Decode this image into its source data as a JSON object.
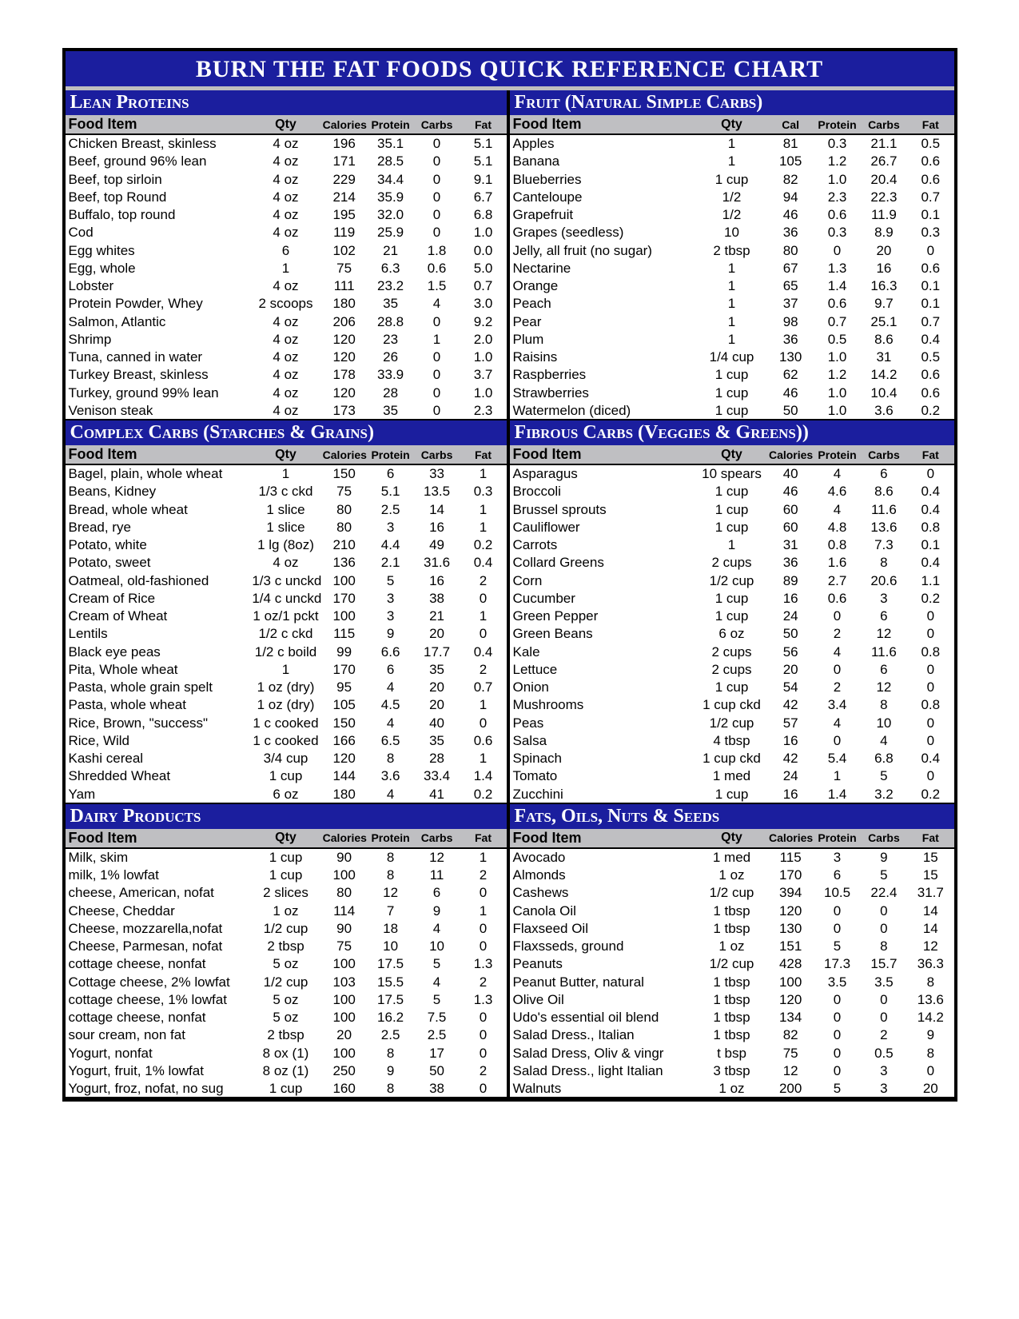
{
  "title": "BURN THE FAT FOODS QUICK REFERENCE CHART",
  "colors": {
    "header_bg": "#1b1e9e",
    "header_fg": "#ffffff",
    "thead_bg": "#bfbfc2",
    "border": "#000000",
    "title_underline": "#bfbfbf"
  },
  "column_labels": {
    "food": "Food Item",
    "qty": "Qty",
    "cal": "Calories",
    "cal_short": "Cal",
    "prot": "Protein",
    "carb": "Carbs",
    "fat": "Fat"
  },
  "sections": [
    {
      "title": "Lean Proteins",
      "cal_label": "Calories",
      "rows": [
        [
          "Chicken Breast, skinless",
          "4 oz",
          "196",
          "35.1",
          "0",
          "5.1"
        ],
        [
          "Beef, ground 96% lean",
          "4 oz",
          "171",
          "28.5",
          "0",
          "5.1"
        ],
        [
          "Beef, top sirloin",
          "4 oz",
          "229",
          "34.4",
          "0",
          "9.1"
        ],
        [
          "Beef, top Round",
          "4 oz",
          "214",
          "35.9",
          "0",
          "6.7"
        ],
        [
          "Buffalo, top round",
          "4 oz",
          "195",
          "32.0",
          "0",
          "6.8"
        ],
        [
          "Cod",
          "4 oz",
          "119",
          "25.9",
          "0",
          "1.0"
        ],
        [
          "Egg whites",
          "6",
          "102",
          "21",
          "1.8",
          "0.0"
        ],
        [
          "Egg, whole",
          "1",
          "75",
          "6.3",
          "0.6",
          "5.0"
        ],
        [
          "Lobster",
          "4 oz",
          "111",
          "23.2",
          "1.5",
          "0.7"
        ],
        [
          "Protein Powder, Whey",
          "2 scoops",
          "180",
          "35",
          "4",
          "3.0"
        ],
        [
          "Salmon, Atlantic",
          "4 oz",
          "206",
          "28.8",
          "0",
          "9.2"
        ],
        [
          "Shrimp",
          "4 oz",
          "120",
          "23",
          "1",
          "2.0"
        ],
        [
          "Tuna, canned in water",
          "4 oz",
          "120",
          "26",
          "0",
          "1.0"
        ],
        [
          "Turkey Breast, skinless",
          "4 oz",
          "178",
          "33.9",
          "0",
          "3.7"
        ],
        [
          "Turkey, ground 99% lean",
          "4 oz",
          "120",
          "28",
          "0",
          "1.0"
        ],
        [
          "Venison steak",
          "4 oz",
          "173",
          "35",
          "0",
          "2.3"
        ]
      ]
    },
    {
      "title": "Fruit (Natural Simple Carbs)",
      "cal_label": "Cal",
      "rows": [
        [
          "Apples",
          "1",
          "81",
          "0.3",
          "21.1",
          "0.5"
        ],
        [
          "Banana",
          "1",
          "105",
          "1.2",
          "26.7",
          "0.6"
        ],
        [
          "Blueberries",
          "1 cup",
          "82",
          "1.0",
          "20.4",
          "0.6"
        ],
        [
          "Canteloupe",
          "1/2",
          "94",
          "2.3",
          "22.3",
          "0.7"
        ],
        [
          "Grapefruit",
          "1/2",
          "46",
          "0.6",
          "11.9",
          "0.1"
        ],
        [
          "Grapes (seedless)",
          "10",
          "36",
          "0.3",
          "8.9",
          "0.3"
        ],
        [
          "Jelly, all fruit (no sugar)",
          "2 tbsp",
          "80",
          "0",
          "20",
          "0"
        ],
        [
          "Nectarine",
          "1",
          "67",
          "1.3",
          "16",
          "0.6"
        ],
        [
          "Orange",
          "1",
          "65",
          "1.4",
          "16.3",
          "0.1"
        ],
        [
          "Peach",
          "1",
          "37",
          "0.6",
          "9.7",
          "0.1"
        ],
        [
          "Pear",
          "1",
          "98",
          "0.7",
          "25.1",
          "0.7"
        ],
        [
          "Plum",
          "1",
          "36",
          "0.5",
          "8.6",
          "0.4"
        ],
        [
          "Raisins",
          "1/4 cup",
          "130",
          "1.0",
          "31",
          "0.5"
        ],
        [
          "Raspberries",
          "1 cup",
          "62",
          "1.2",
          "14.2",
          "0.6"
        ],
        [
          "Strawberries",
          "1 cup",
          "46",
          "1.0",
          "10.4",
          "0.6"
        ],
        [
          "Watermelon (diced)",
          "1 cup",
          "50",
          "1.0",
          "3.6",
          "0.2"
        ]
      ]
    },
    {
      "title": "Complex Carbs (Starches & Grains)",
      "cal_label": "Calories",
      "rows": [
        [
          "Bagel, plain, whole wheat",
          "1",
          "150",
          "6",
          "33",
          "1"
        ],
        [
          "Beans, Kidney",
          "1/3 c ckd",
          "75",
          "5.1",
          "13.5",
          "0.3"
        ],
        [
          "Bread,  whole wheat",
          "1 slice",
          "80",
          "2.5",
          "14",
          "1"
        ],
        [
          "Bread, rye",
          "1 slice",
          "80",
          "3",
          "16",
          "1"
        ],
        [
          "Potato, white",
          "1 lg (8oz)",
          "210",
          "4.4",
          "49",
          "0.2"
        ],
        [
          "Potato, sweet",
          "4 oz",
          "136",
          "2.1",
          "31.6",
          "0.4"
        ],
        [
          "Oatmeal, old-fashioned",
          "1/3 c unckd",
          "100",
          "5",
          "16",
          "2"
        ],
        [
          "Cream of Rice",
          "1/4 c unckd",
          "170",
          "3",
          "38",
          "0"
        ],
        [
          "Cream of Wheat",
          "1 oz/1 pckt",
          "100",
          "3",
          "21",
          "1"
        ],
        [
          "Lentils",
          "1/2 c ckd",
          "115",
          "9",
          "20",
          "0"
        ],
        [
          "Black eye peas",
          "1/2 c boild",
          "99",
          "6.6",
          "17.7",
          "0.4"
        ],
        [
          "Pita, Whole wheat",
          "1",
          "170",
          "6",
          "35",
          "2"
        ],
        [
          "Pasta, whole grain spelt",
          "1 oz (dry)",
          "95",
          "4",
          "20",
          "0.7"
        ],
        [
          "Pasta, whole wheat",
          "1 oz (dry)",
          "105",
          "4.5",
          "20",
          "1"
        ],
        [
          "Rice, Brown, \"success\"",
          "1 c cooked",
          "150",
          "4",
          "40",
          "0"
        ],
        [
          "Rice, Wild",
          "1 c cooked",
          "166",
          "6.5",
          "35",
          "0.6"
        ],
        [
          "Kashi cereal",
          "3/4 cup",
          "120",
          "8",
          "28",
          "1"
        ],
        [
          "Shredded Wheat",
          "1 cup",
          "144",
          "3.6",
          "33.4",
          "1.4"
        ],
        [
          "Yam",
          "6 oz",
          "180",
          "4",
          "41",
          "0.2"
        ]
      ]
    },
    {
      "title": "Fibrous Carbs (Veggies & Greens))",
      "cal_label": "Calories",
      "rows": [
        [
          "Asparagus",
          "10 spears",
          "40",
          "4",
          "6",
          "0"
        ],
        [
          "Broccoli",
          "1 cup",
          "46",
          "4.6",
          "8.6",
          "0.4"
        ],
        [
          "Brussel sprouts",
          "1 cup",
          "60",
          "4",
          "11.6",
          "0.4"
        ],
        [
          "Cauliflower",
          "1 cup",
          "60",
          "4.8",
          "13.6",
          "0.8"
        ],
        [
          "Carrots",
          "1",
          "31",
          "0.8",
          "7.3",
          "0.1"
        ],
        [
          "Collard Greens",
          "2 cups",
          "36",
          "1.6",
          "8",
          "0.4"
        ],
        [
          "Corn",
          "1/2 cup",
          "89",
          "2.7",
          "20.6",
          "1.1"
        ],
        [
          "Cucumber",
          "1 cup",
          "16",
          "0.6",
          "3",
          "0.2"
        ],
        [
          "Green Pepper",
          "1 cup",
          "24",
          "0",
          "6",
          "0"
        ],
        [
          "Green Beans",
          "6 oz",
          "50",
          "2",
          "12",
          "0"
        ],
        [
          "Kale",
          "2 cups",
          "56",
          "4",
          "11.6",
          "0.8"
        ],
        [
          "Lettuce",
          "2 cups",
          "20",
          "0",
          "6",
          "0"
        ],
        [
          "Onion",
          "1 cup",
          "54",
          "2",
          "12",
          "0"
        ],
        [
          "Mushrooms",
          "1 cup ckd",
          "42",
          "3.4",
          "8",
          "0.8"
        ],
        [
          "Peas",
          "1/2 cup",
          "57",
          "4",
          "10",
          "0"
        ],
        [
          "Salsa",
          "4 tbsp",
          "16",
          "0",
          "4",
          "0"
        ],
        [
          "Spinach",
          "1 cup ckd",
          "42",
          "5.4",
          "6.8",
          "0.4"
        ],
        [
          "Tomato",
          "1 med",
          "24",
          "1",
          "5",
          "0"
        ],
        [
          "Zucchini",
          "1 cup",
          "16",
          "1.4",
          "3.2",
          "0.2"
        ]
      ]
    },
    {
      "title": "Dairy Products",
      "cal_label": "Calories",
      "rows": [
        [
          "Milk, skim",
          "1 cup",
          "90",
          "8",
          "12",
          "1"
        ],
        [
          "milk, 1% lowfat",
          "1 cup",
          "100",
          "8",
          "11",
          "2"
        ],
        [
          "cheese, American, nofat",
          "2 slices",
          "80",
          "12",
          "6",
          "0"
        ],
        [
          "Cheese, Cheddar",
          "1 oz",
          "114",
          "7",
          "9",
          "1"
        ],
        [
          "Cheese, mozzarella,nofat",
          "1/2 cup",
          "90",
          "18",
          "4",
          "0"
        ],
        [
          "Cheese, Parmesan, nofat",
          "2 tbsp",
          "75",
          "10",
          "10",
          "0"
        ],
        [
          "cottage cheese, nonfat",
          "5 oz",
          "100",
          "17.5",
          "5",
          "1.3"
        ],
        [
          "Cottage cheese, 2% lowfat",
          "1/2 cup",
          "103",
          "15.5",
          "4",
          "2"
        ],
        [
          "cottage cheese, 1% lowfat",
          "5 oz",
          "100",
          "17.5",
          "5",
          "1.3"
        ],
        [
          "cottage cheese, nonfat",
          "5 oz",
          "100",
          "16.2",
          "7.5",
          "0"
        ],
        [
          "sour cream, non fat",
          "2 tbsp",
          "20",
          "2.5",
          "2.5",
          "0"
        ],
        [
          "Yogurt, nonfat",
          "8 ox (1)",
          "100",
          "8",
          "17",
          "0"
        ],
        [
          "Yogurt, fruit, 1% lowfat",
          "8 oz (1)",
          "250",
          "9",
          "50",
          "2"
        ],
        [
          "Yogurt, froz, nofat, no sug",
          "1 cup",
          "160",
          "8",
          "38",
          "0"
        ]
      ]
    },
    {
      "title": "Fats, Oils, Nuts & Seeds",
      "cal_label": "Calories",
      "rows": [
        [
          "Avocado",
          "1 med",
          "115",
          "3",
          "9",
          "15"
        ],
        [
          "Almonds",
          "1 oz",
          "170",
          "6",
          "5",
          "15"
        ],
        [
          "Cashews",
          "1/2 cup",
          "394",
          "10.5",
          "22.4",
          "31.7"
        ],
        [
          "Canola Oil",
          "1 tbsp",
          "120",
          "0",
          "0",
          "14"
        ],
        [
          "Flaxseed Oil",
          "1 tbsp",
          "130",
          "0",
          "0",
          "14"
        ],
        [
          "Flaxsseds, ground",
          "1 oz",
          "151",
          "5",
          "8",
          "12"
        ],
        [
          "Peanuts",
          "1/2 cup",
          "428",
          "17.3",
          "15.7",
          "36.3"
        ],
        [
          "Peanut Butter, natural",
          "1 tbsp",
          "100",
          "3.5",
          "3.5",
          "8"
        ],
        [
          "Olive Oil",
          "1 tbsp",
          "120",
          "0",
          "0",
          "13.6"
        ],
        [
          "Udo's essential oil blend",
          "1 tbsp",
          "134",
          "0",
          "0",
          "14.2"
        ],
        [
          "Salad Dress., Italian",
          "1 tbsp",
          "82",
          "0",
          "2",
          "9"
        ],
        [
          "Salad Dress, Oliv & vingr",
          "t bsp",
          "75",
          "0",
          "0.5",
          "8"
        ],
        [
          "Salad Dress., light Italian",
          "3 tbsp",
          "12",
          "0",
          "3",
          "0"
        ],
        [
          "Walnuts",
          "1 oz",
          "200",
          "5",
          "3",
          "20"
        ]
      ]
    }
  ]
}
